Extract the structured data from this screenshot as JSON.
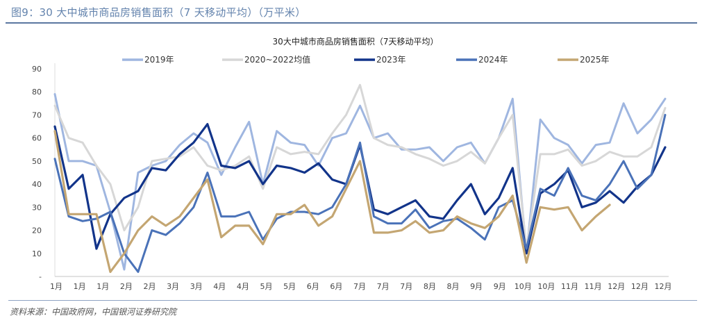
{
  "figure_title": "图9：30 大中城市商品房销售面积（7 天移动平均）（万平米）",
  "source": "资料来源：中国政府网，中国银河证券研究院",
  "chart_data": {
    "type": "line",
    "title": "30大中城市商品房销售面积（7天移动平均）",
    "xlabel": "",
    "ylabel": "",
    "ylim": [
      0,
      90
    ],
    "y_ticks": [
      "-",
      "10",
      "20",
      "30",
      "40",
      "50",
      "60",
      "70",
      "80",
      "90"
    ],
    "x_tick_labels": [
      "1月",
      "1月",
      "1月",
      "2月",
      "2月",
      "3月",
      "3月",
      "4月",
      "4月",
      "5月",
      "5月",
      "6月",
      "6月",
      "7月",
      "7月",
      "7月",
      "8月",
      "8月",
      "9月",
      "9月",
      "10月",
      "10月",
      "11月",
      "11月",
      "12月",
      "12月",
      "12月"
    ],
    "grid": false,
    "legend_position": "top",
    "series": [
      {
        "name": "2019年",
        "color": "#9fb6e0",
        "width": 3,
        "values": [
          79,
          50,
          50,
          48,
          28,
          3,
          45,
          48,
          50,
          57,
          62,
          58,
          44,
          56,
          67,
          40,
          63,
          58,
          57,
          48,
          60,
          62,
          74,
          60,
          62,
          55,
          55,
          56,
          50,
          56,
          58,
          49,
          60,
          77,
          10,
          68,
          60,
          57,
          49,
          57,
          58,
          75,
          62,
          68,
          77
        ]
      },
      {
        "name": "2020~2022均值",
        "color": "#d7d7d7",
        "width": 3,
        "values": [
          74,
          60,
          58,
          48,
          40,
          20,
          30,
          50,
          51,
          52,
          56,
          48,
          46,
          48,
          52,
          38,
          56,
          53,
          54,
          53,
          62,
          70,
          83,
          60,
          57,
          56,
          53,
          51,
          48,
          50,
          54,
          49,
          60,
          70,
          12,
          53,
          53,
          55,
          48,
          50,
          54,
          52,
          52,
          56,
          73
        ]
      },
      {
        "name": "2023年",
        "color": "#12348a",
        "width": 3.2,
        "values": [
          65,
          38,
          44,
          12,
          27,
          34,
          37,
          47,
          46,
          53,
          58,
          66,
          48,
          47,
          50,
          40,
          48,
          47,
          45,
          49,
          42,
          40,
          57,
          29,
          27,
          30,
          33,
          26,
          25,
          33,
          40,
          27,
          34,
          47,
          10,
          36,
          40,
          46,
          30,
          32,
          37,
          32,
          39,
          44,
          56
        ]
      },
      {
        "name": "2024年",
        "color": "#4a72b8",
        "width": 3,
        "values": [
          51,
          26,
          24,
          25,
          28,
          10,
          2,
          20,
          18,
          23,
          30,
          45,
          26,
          26,
          28,
          16,
          25,
          28,
          28,
          27,
          30,
          40,
          58,
          26,
          23,
          23,
          29,
          21,
          24,
          25,
          21,
          16,
          30,
          33,
          12,
          38,
          35,
          47,
          35,
          33,
          40,
          50,
          38,
          44,
          70
        ]
      },
      {
        "name": "2025年",
        "color": "#c4a672",
        "width": 3.2,
        "values": [
          63,
          27,
          27,
          27,
          2,
          10,
          20,
          26,
          22,
          26,
          34,
          42,
          17,
          22,
          22,
          14,
          27,
          27,
          31,
          22,
          26,
          38,
          50,
          19,
          19,
          20,
          24,
          19,
          20,
          26,
          23,
          21,
          26,
          35,
          6,
          30,
          29,
          30,
          20,
          26,
          31,
          null,
          null,
          null,
          null
        ]
      }
    ]
  }
}
